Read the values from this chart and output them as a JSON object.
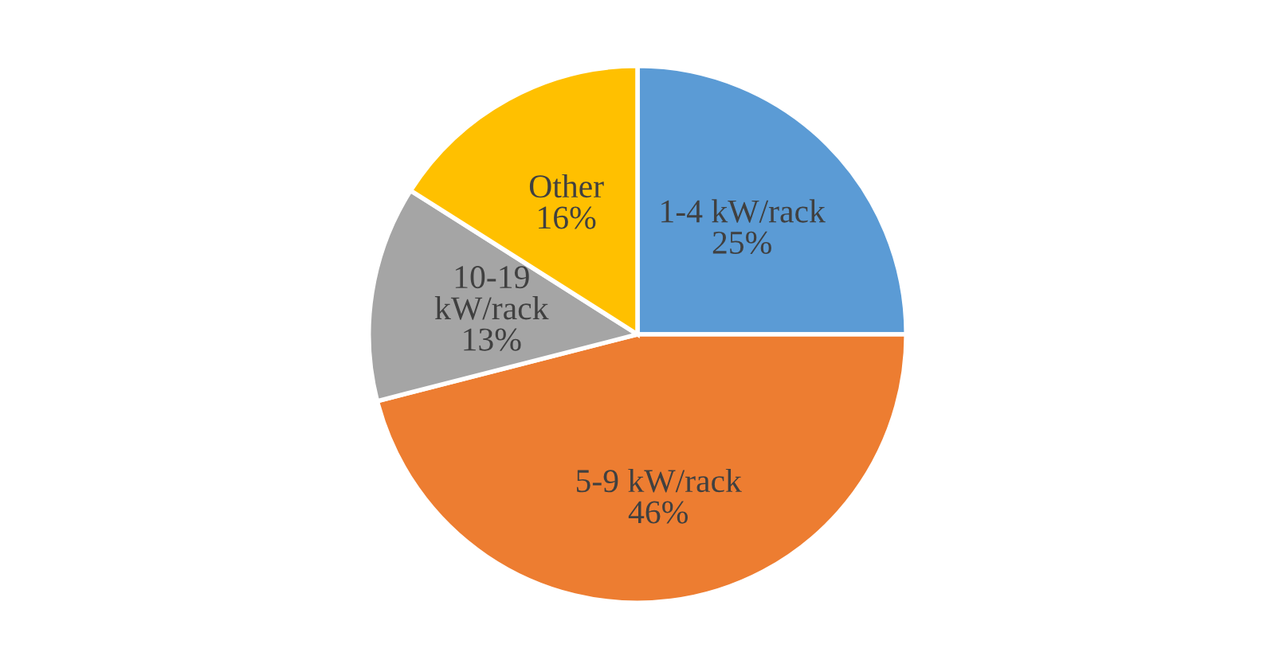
{
  "chart_data": {
    "type": "pie",
    "categories": [
      "1-4 kW/rack",
      "5-9 kW/rack",
      "10-19 kW/rack",
      "Other"
    ],
    "values": [
      25,
      46,
      13,
      16
    ],
    "value_labels": [
      "25%",
      "46%",
      "13%",
      "16%"
    ],
    "colors": [
      "#5b9bd5",
      "#ed7d31",
      "#a5a5a5",
      "#ffc000"
    ]
  }
}
